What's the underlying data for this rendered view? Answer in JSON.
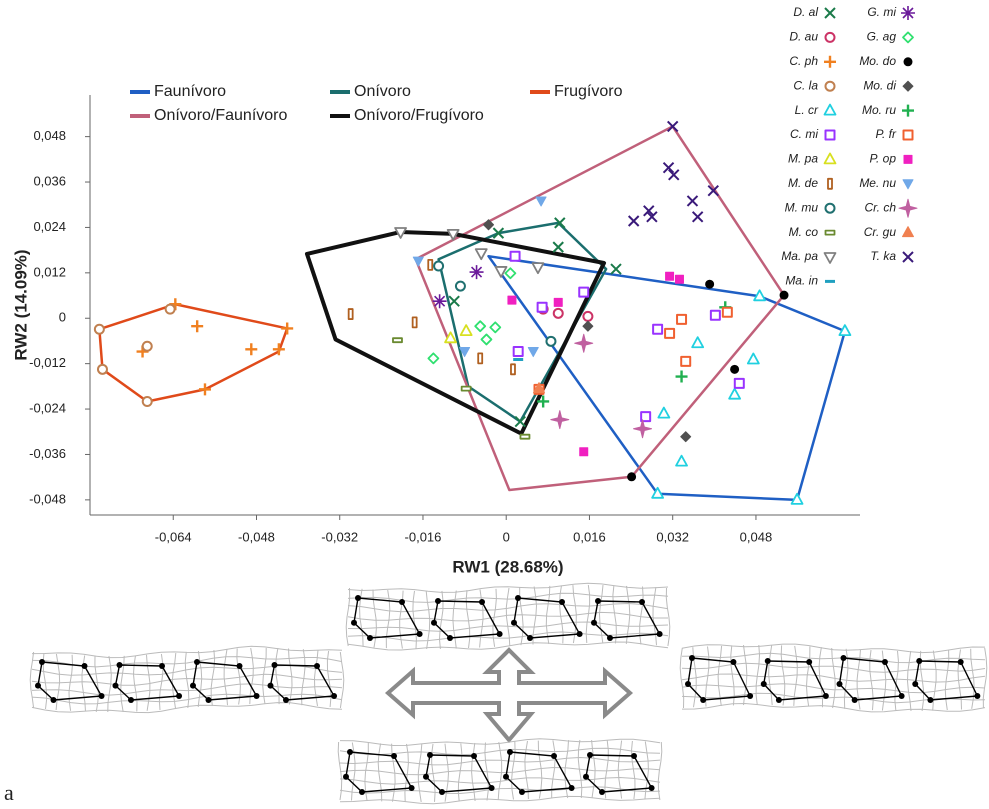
{
  "panel_label": "a",
  "chart_data": {
    "type": "scatter",
    "x_label": "RW1 (28.68%)",
    "y_label": "RW2 (14.09%)",
    "xlim": [
      -0.08,
      0.068
    ],
    "ylim": [
      -0.052,
      0.059
    ],
    "xticks": [
      {
        "value": -0.064,
        "label": "-0,064"
      },
      {
        "value": -0.048,
        "label": "-0,048"
      },
      {
        "value": -0.032,
        "label": "-0,032"
      },
      {
        "value": -0.016,
        "label": "-0,016"
      },
      0,
      {
        "value": 0.016,
        "label": "0,016"
      },
      {
        "value": 0.032,
        "label": "0,032"
      },
      {
        "value": 0.048,
        "label": "0,048"
      }
    ],
    "yticks": [
      {
        "value": 0.048,
        "label": "0,048"
      },
      {
        "value": 0.036,
        "label": "0,036"
      },
      {
        "value": 0.024,
        "label": "0,024"
      },
      {
        "value": 0.012,
        "label": "0,012"
      },
      0,
      {
        "value": -0.012,
        "label": "-0,012"
      },
      {
        "value": -0.024,
        "label": "-0,024"
      },
      {
        "value": -0.036,
        "label": "-0,036"
      },
      {
        "value": -0.048,
        "label": "-0,048"
      }
    ],
    "hulls": [
      {
        "name": "Faunívoro",
        "color": "#1f5fc4",
        "x": [
          -0.0034,
          0.0487,
          0.0651,
          0.0559,
          0.0291
        ],
        "y": [
          0.0164,
          0.0058,
          -0.0034,
          -0.048,
          -0.0464
        ]
      },
      {
        "name": "Onívoro",
        "color": "#1b6e6e",
        "x": [
          -0.013,
          -0.0073,
          0.0027,
          0.0192,
          0.01,
          -0.0015
        ],
        "y": [
          0.0156,
          -0.018,
          -0.0273,
          0.013,
          0.0252,
          0.0225
        ]
      },
      {
        "name": "Frugívoro",
        "color": "#e04a1a",
        "x": [
          -0.0782,
          -0.0776,
          -0.069,
          -0.0579,
          -0.0437,
          -0.0421,
          -0.0636
        ],
        "y": [
          -0.0029,
          -0.0135,
          -0.022,
          -0.0188,
          -0.0088,
          -0.0027,
          0.0037
        ]
      },
      {
        "name": "Onívoro/Faunívoro",
        "color": "#c0607a",
        "x": [
          -0.0174,
          0.0006,
          0.0241,
          0.0534,
          0.032
        ],
        "y": [
          0.0156,
          -0.0454,
          -0.0419,
          0.0061,
          0.0507
        ]
      },
      {
        "name": "Onívoro/Frugívoro",
        "color": "#111111",
        "x": [
          -0.0383,
          -0.0328,
          0.0029,
          0.0188,
          -0.0102,
          -0.0203
        ],
        "y": [
          0.017,
          -0.0056,
          -0.0305,
          0.0146,
          0.0223,
          0.0228
        ]
      }
    ],
    "series": [
      {
        "name": "D. al",
        "color": "#1a7a4a",
        "marker": "x",
        "x": [
          -0.0015,
          0.0103,
          0.01,
          0.0211,
          0.0027,
          -0.01
        ],
        "y": [
          0.0225,
          0.0252,
          0.0188,
          0.013,
          -0.0273,
          0.0045
        ]
      },
      {
        "name": "D. au",
        "color": "#cc3366",
        "marker": "circle",
        "x": [
          0.01,
          0.0157,
          0.0071
        ],
        "y": [
          0.0013,
          0.0005,
          0.0024
        ]
      },
      {
        "name": "C. ph",
        "color": "#f08020",
        "marker": "plus",
        "x": [
          -0.0636,
          -0.0594,
          -0.049,
          -0.0437,
          -0.0421,
          -0.0579,
          -0.0699
        ],
        "y": [
          0.0037,
          -0.0021,
          -0.0082,
          -0.0082,
          -0.0027,
          -0.0188,
          -0.0088
        ]
      },
      {
        "name": "C. la",
        "color": "#c08050",
        "marker": "circle",
        "x": [
          -0.0782,
          -0.0776,
          -0.069,
          -0.069,
          -0.0646
        ],
        "y": [
          -0.0029,
          -0.0135,
          -0.022,
          -0.0074,
          0.0024
        ]
      },
      {
        "name": "L. cr",
        "color": "#20d0e0",
        "marker": "triangle",
        "x": [
          0.0487,
          0.0651,
          0.0559,
          0.0291,
          0.0368,
          0.0439,
          0.0337,
          0.0303,
          0.0475
        ],
        "y": [
          0.0058,
          -0.0034,
          -0.048,
          -0.0464,
          -0.0066,
          -0.0202,
          -0.0379,
          -0.0252,
          -0.0109
        ]
      },
      {
        "name": "C. mi",
        "color": "#9933ff",
        "marker": "square",
        "x": [
          0.0017,
          0.0069,
          0.0149,
          0.0291,
          0.0402,
          0.0448,
          0.0268,
          0.0023
        ],
        "y": [
          0.0164,
          0.0029,
          0.0069,
          -0.0029,
          0.0008,
          -0.0172,
          -0.026,
          -0.0088
        ]
      },
      {
        "name": "M. pa",
        "color": "#d8e020",
        "marker": "triangle",
        "x": [
          -0.0107,
          -0.0077
        ],
        "y": [
          -0.0053,
          -0.0034
        ]
      },
      {
        "name": "M. de",
        "color": "#b06020",
        "marker": "bar-v",
        "x": [
          -0.0299,
          -0.0176,
          -0.0146,
          -0.005,
          0.0013
        ],
        "y": [
          0.0011,
          -0.0011,
          0.0141,
          -0.0106,
          -0.0135
        ]
      },
      {
        "name": "M. mu",
        "color": "#207070",
        "marker": "circle",
        "x": [
          -0.0088,
          -0.013,
          0.0086
        ],
        "y": [
          0.0085,
          0.0138,
          -0.0061
        ]
      },
      {
        "name": "M. co",
        "color": "#6a8a30",
        "marker": "bar-h",
        "x": [
          -0.0209,
          -0.0077,
          0.0036
        ],
        "y": [
          -0.0058,
          -0.0186,
          -0.0313
        ]
      },
      {
        "name": "Ma. pa",
        "color": "#808080",
        "marker": "triangle-down",
        "x": [
          -0.0203,
          -0.0102,
          -0.0048,
          0.0061,
          -0.001
        ],
        "y": [
          0.0228,
          0.0223,
          0.0172,
          0.0135,
          0.0125
        ]
      },
      {
        "name": "Ma. in",
        "color": "#20a0c0",
        "marker": "dash",
        "x": [
          0.0023
        ],
        "y": [
          -0.0109
        ]
      },
      {
        "name": "G. mi",
        "color": "#6a1a9a",
        "marker": "asterisk",
        "x": [
          -0.0128,
          -0.0057
        ],
        "y": [
          0.0045,
          0.0122
        ]
      },
      {
        "name": "G. ag",
        "color": "#30e070",
        "marker": "diamond",
        "x": [
          -0.014,
          -0.005,
          -0.0021,
          0.0008,
          -0.0038
        ],
        "y": [
          -0.0106,
          -0.0021,
          -0.0024,
          0.0119,
          -0.0056
        ]
      },
      {
        "name": "Mo. do",
        "color": "#000000",
        "marker": "dot",
        "x": [
          0.0241,
          0.0391,
          0.0439,
          0.0534
        ],
        "y": [
          -0.0419,
          0.009,
          -0.0135,
          0.0061
        ]
      },
      {
        "name": "Mo. di",
        "color": "#505050",
        "marker": "diamond-filled",
        "x": [
          -0.0034,
          0.0157,
          0.0345
        ],
        "y": [
          0.0247,
          -0.0021,
          -0.0313
        ]
      },
      {
        "name": "Mo. ru",
        "color": "#20b050",
        "marker": "plus",
        "x": [
          0.0337,
          0.0421,
          0.0071
        ],
        "y": [
          -0.0154,
          0.0029,
          -0.022
        ]
      },
      {
        "name": "P. fr",
        "color": "#f06030",
        "marker": "square",
        "x": [
          0.0337,
          0.0314,
          0.0345,
          0.0425,
          0.0063
        ],
        "y": [
          -0.0003,
          -0.004,
          -0.0114,
          0.0016,
          -0.0188
        ]
      },
      {
        "name": "P. op",
        "color": "#f020c0",
        "marker": "square-filled",
        "x": [
          0.0011,
          0.01,
          0.0314,
          0.0333,
          0.0149
        ],
        "y": [
          0.0048,
          0.0042,
          0.0111,
          0.0103,
          -0.0353
        ]
      },
      {
        "name": "Me. nu",
        "color": "#70a8e8",
        "marker": "triangle-down-filled",
        "x": [
          0.0067,
          -0.0169,
          0.0052,
          -0.008
        ],
        "y": [
          0.031,
          0.0151,
          -0.0088,
          -0.0088
        ]
      },
      {
        "name": "Cr. ch",
        "color": "#c060a0",
        "marker": "star",
        "x": [
          0.0149,
          0.0103,
          0.0262
        ],
        "y": [
          -0.0066,
          -0.0268,
          -0.0292
        ]
      },
      {
        "name": "Cr. gu",
        "color": "#f08050",
        "marker": "triangle-filled",
        "x": [
          0.0063
        ],
        "y": [
          -0.0186
        ]
      },
      {
        "name": "T. ka",
        "color": "#3a1a7a",
        "marker": "x",
        "x": [
          0.032,
          0.0312,
          0.0322,
          0.0398,
          0.0358,
          0.0274,
          0.0245,
          0.028,
          0.0368
        ],
        "y": [
          0.0507,
          0.0398,
          0.0379,
          0.0337,
          0.031,
          0.0284,
          0.0257,
          0.0268,
          0.0268
        ]
      }
    ]
  }
}
